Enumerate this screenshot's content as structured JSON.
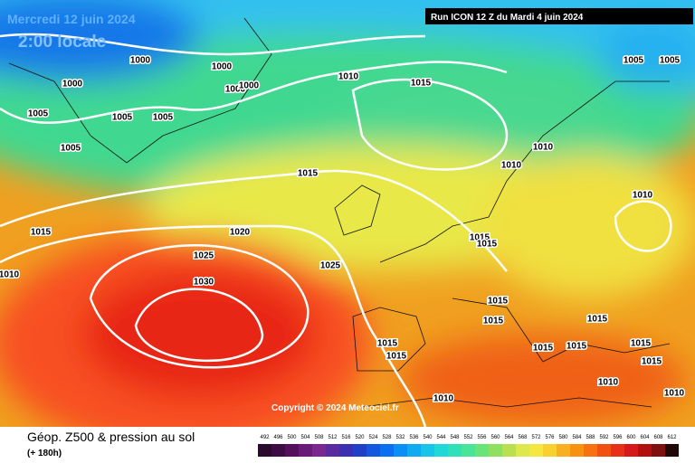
{
  "header": {
    "date": "Mercredi 12 juin 2024",
    "time": "2:00 locale",
    "run": "Run ICON 12 Z du Mardi 4 juin 2024"
  },
  "copyright": "Copyright © 2024 Meteociel.fr",
  "legend": {
    "title": "Géop. Z500 & pression au sol",
    "lead": "(+ 180h)",
    "scale": [
      492,
      496,
      500,
      504,
      508,
      512,
      516,
      520,
      524,
      528,
      532,
      536,
      540,
      544,
      548,
      552,
      556,
      560,
      564,
      568,
      572,
      576,
      580,
      584,
      588,
      592,
      596,
      600,
      604,
      608,
      612
    ],
    "colors": [
      "#2b0a2e",
      "#3e0c44",
      "#55105c",
      "#6a1a78",
      "#7c2690",
      "#5a2aa0",
      "#3a30b0",
      "#2040c8",
      "#1458e0",
      "#0a70f0",
      "#0a90f4",
      "#10aaf0",
      "#18c4e8",
      "#20d8d8",
      "#30e0b8",
      "#48e498",
      "#68e478",
      "#90e060",
      "#b8e050",
      "#dce84c",
      "#f4e840",
      "#f8d030",
      "#f8b020",
      "#f89010",
      "#f87010",
      "#f05010",
      "#e83018",
      "#d81818",
      "#b01010",
      "#801010",
      "#200808"
    ]
  },
  "isobar_labels": [
    1000,
    1000,
    1000,
    1000,
    1000,
    1005,
    1005,
    1005,
    1005,
    1005,
    1005,
    1010,
    1010,
    1010,
    1010,
    1010,
    1015,
    1015,
    1015,
    1015,
    1015,
    1015,
    1015,
    1015,
    1015,
    1015,
    1015,
    1015,
    1015,
    1015,
    1020,
    1025,
    1025,
    1030,
    1010,
    1010,
    1010
  ]
}
